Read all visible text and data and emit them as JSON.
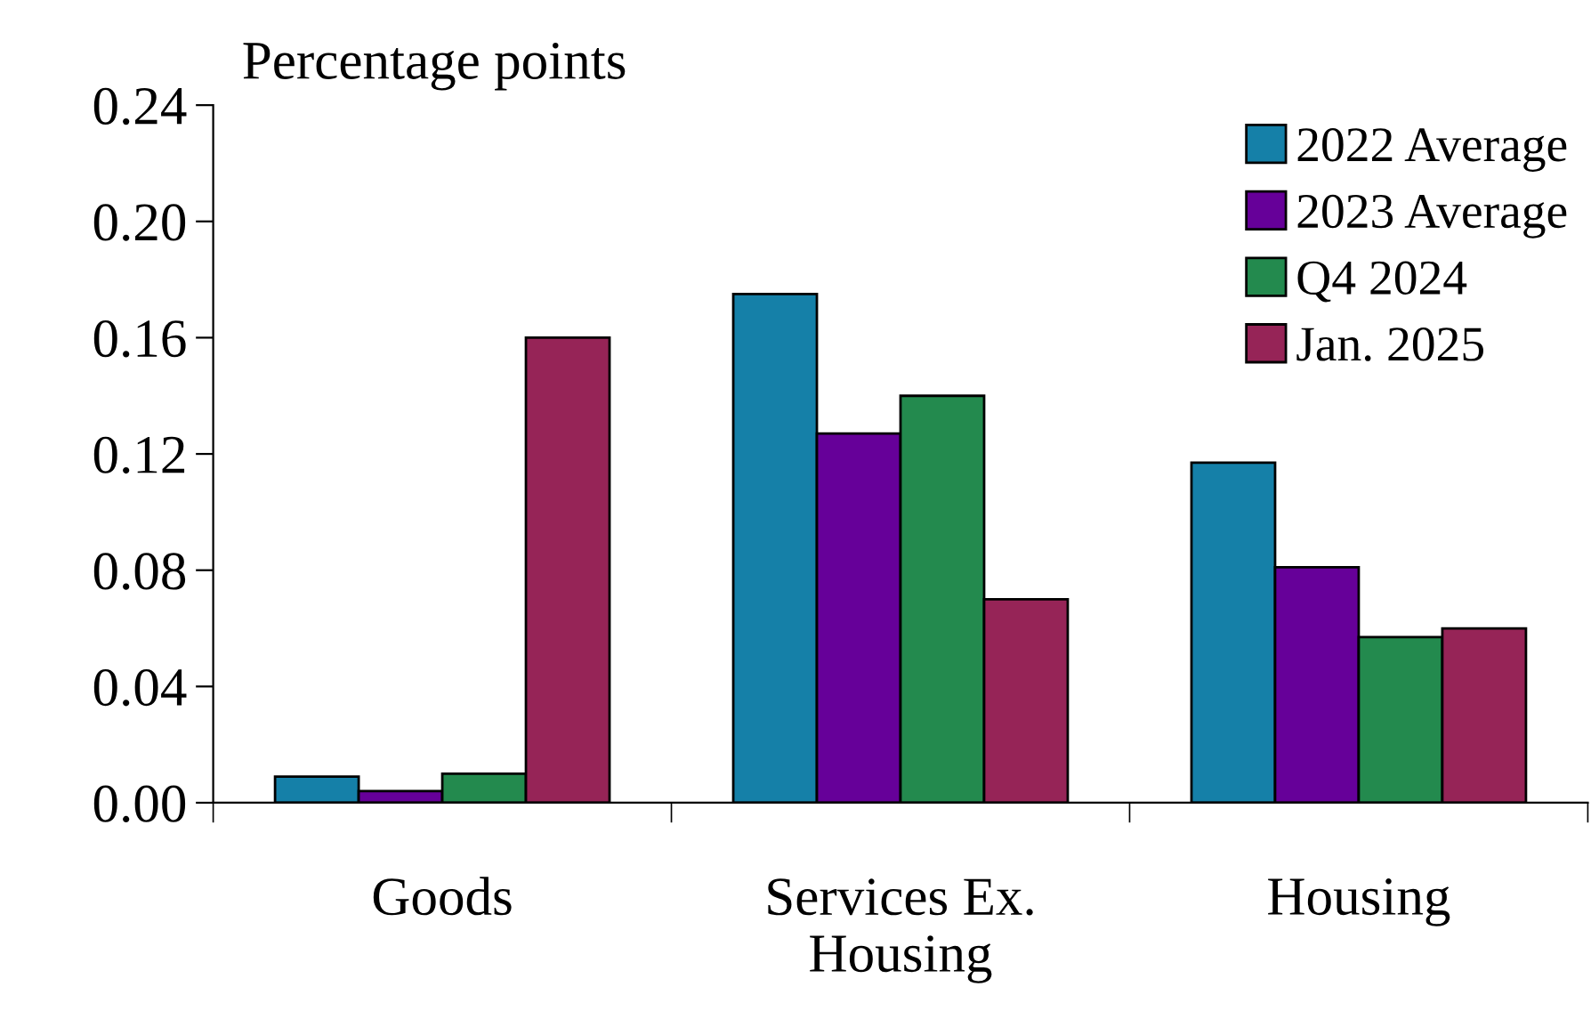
{
  "chart_data": {
    "type": "bar",
    "ylabel": "Percentage points",
    "categories": [
      "Goods",
      "Services Ex.\nHousing",
      "Housing"
    ],
    "series": [
      {
        "name": "2022 Average",
        "color": "#1580a8",
        "values": [
          0.009,
          0.175,
          0.117
        ]
      },
      {
        "name": "2023 Average",
        "color": "#660099",
        "values": [
          0.004,
          0.127,
          0.081
        ]
      },
      {
        "name": "Q4 2024",
        "color": "#238a4e",
        "values": [
          0.01,
          0.14,
          0.057
        ]
      },
      {
        "name": "Jan. 2025",
        "color": "#962457",
        "values": [
          0.16,
          0.07,
          0.06
        ]
      }
    ],
    "ylim": [
      0,
      0.24
    ],
    "yticks": [
      {
        "value": 0,
        "label": "0.00"
      },
      {
        "value": 0.04,
        "label": "0.04"
      },
      {
        "value": 0.08,
        "label": "0.08"
      },
      {
        "value": 0.12,
        "label": "0.12"
      },
      {
        "value": 0.16,
        "label": "0.16"
      },
      {
        "value": 0.2,
        "label": "0.20"
      },
      {
        "value": 0.24,
        "label": "0.24"
      }
    ],
    "grid": false,
    "legend": "top right"
  }
}
